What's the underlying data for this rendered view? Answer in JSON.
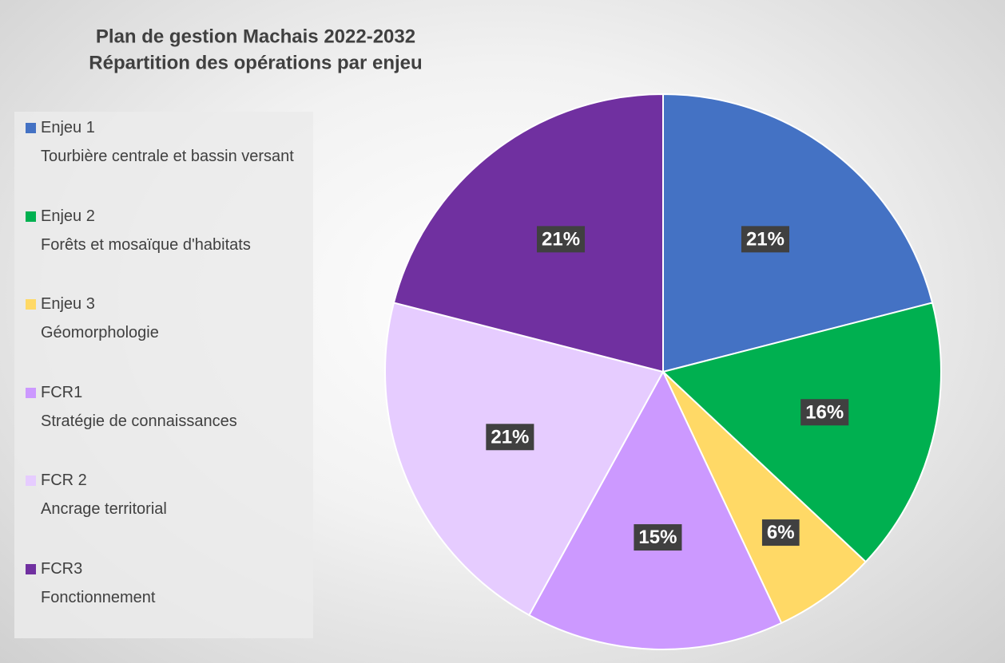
{
  "chart_data": {
    "type": "pie",
    "title": "Plan de gestion Machais 2022-2032",
    "subtitle": "Répartition des opérations par enjeu",
    "categories": [
      "Enjeu 1\nTourbière centrale et bassin versant",
      "Enjeu 2\nForêts et mosaïque d'habitats",
      "Enjeu 3\nGéomorphologie",
      "FCR1\nStratégie de connaissances",
      "FCR 2\nAncrage territorial",
      "FCR3\nFonctionnement"
    ],
    "values": [
      21,
      16,
      6,
      15,
      21,
      21
    ],
    "value_labels": [
      "21%",
      "16%",
      "6%",
      "15%",
      "21%",
      "21%"
    ],
    "colors": [
      "#4472c4",
      "#00b050",
      "#ffd966",
      "#cc99ff",
      "#e6ccff",
      "#7030a0"
    ],
    "legend": "left"
  }
}
